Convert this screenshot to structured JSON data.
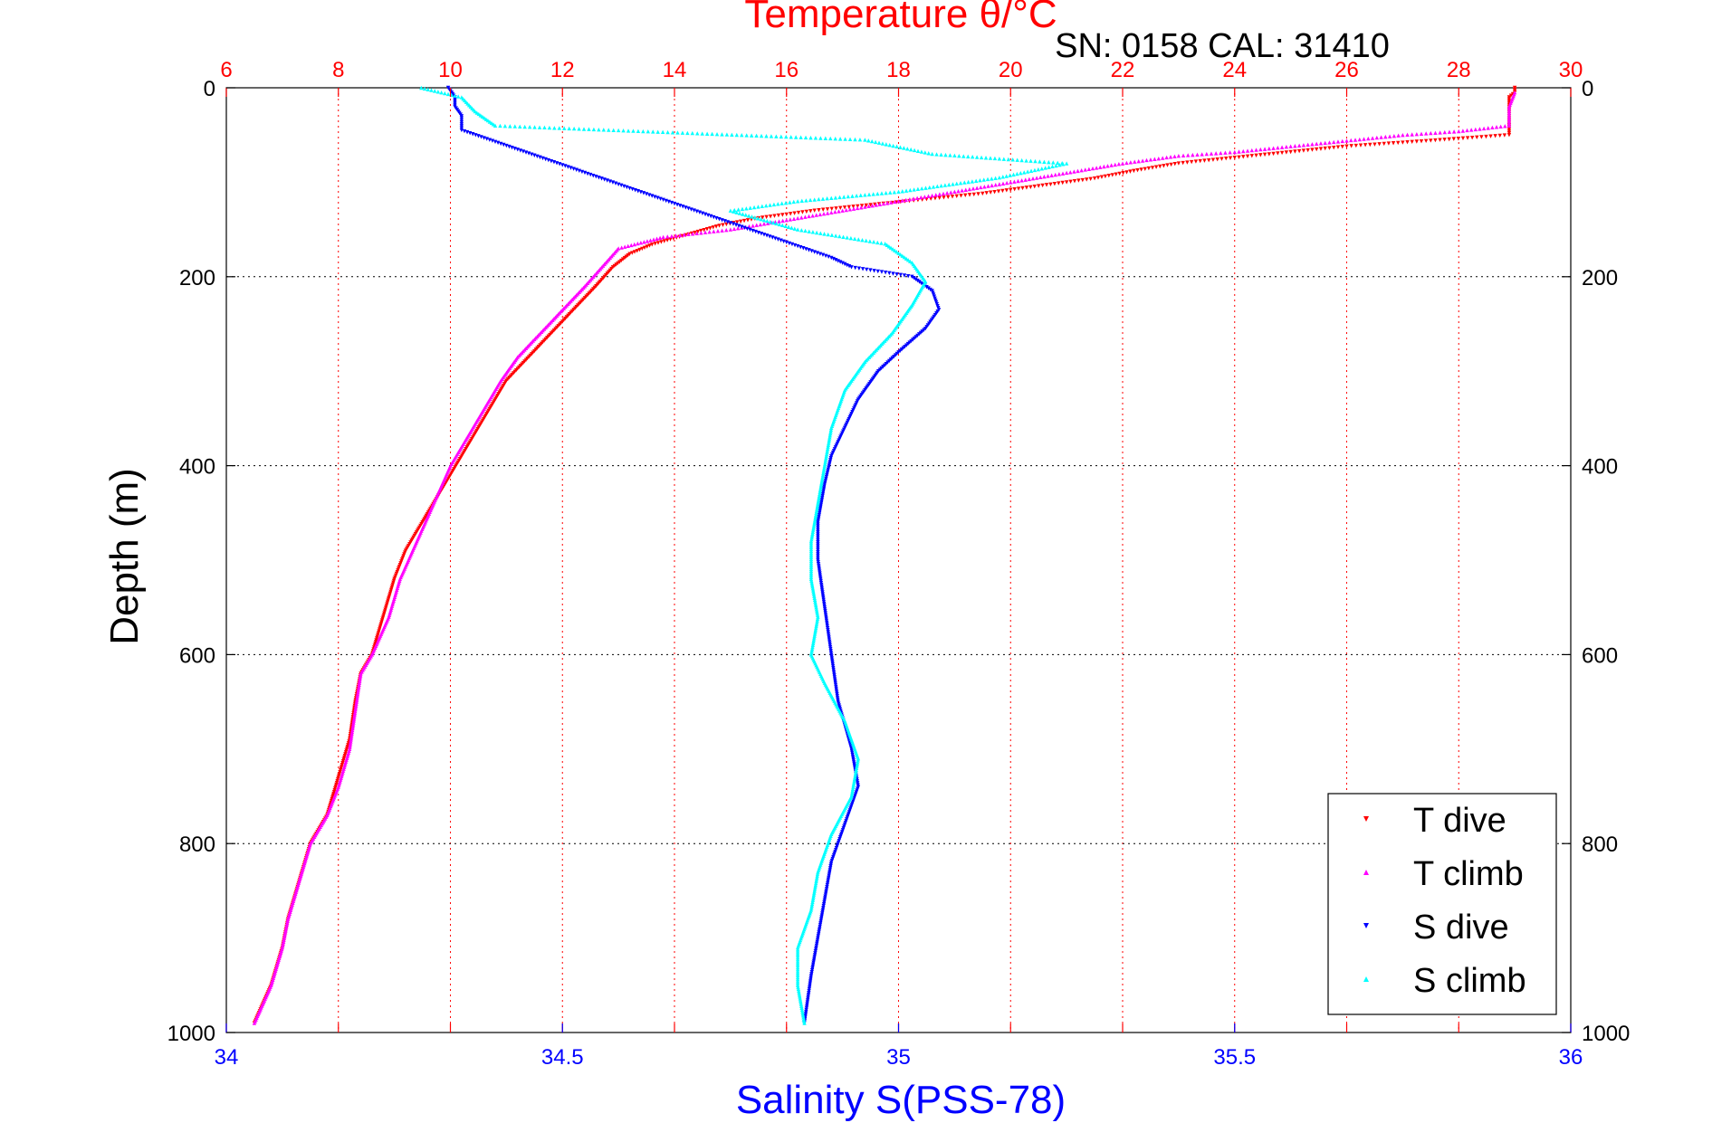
{
  "colors": {
    "t_axis": "#ff0000",
    "s_axis": "#0000ff",
    "t_dive": "#ff0000",
    "t_climb": "#ff00ff",
    "s_dive": "#0000ff",
    "s_climb": "#00ffff",
    "grid_depth": "#000000"
  },
  "chart_data": {
    "type": "scatter",
    "title": "Temperature θ/°C",
    "subtitle": "SN: 0158  CAL: 31410",
    "ylabel": "Depth (m)",
    "xlabel_bottom": "Salinity S(PSS-78)",
    "xlabel_top": "Temperature θ/°C",
    "y_reversed": true,
    "ylim": [
      0,
      1000
    ],
    "yticks": [
      "0",
      "200",
      "400",
      "600",
      "800",
      "1000"
    ],
    "xlim_temperature": [
      6,
      30
    ],
    "xticks_temperature": [
      "6",
      "8",
      "10",
      "12",
      "14",
      "16",
      "18",
      "20",
      "22",
      "24",
      "26",
      "28",
      "30"
    ],
    "xlim_salinity": [
      34,
      36
    ],
    "xticks_salinity": [
      "34",
      "34.5",
      "35",
      "35.5",
      "36"
    ],
    "grid": true,
    "legend_position": "bottom-right",
    "series": [
      {
        "name": "T dive",
        "axis": "temperature",
        "marker": "triangle-down",
        "points": [
          [
            29.0,
            0
          ],
          [
            29.0,
            5
          ],
          [
            28.9,
            10
          ],
          [
            28.9,
            20
          ],
          [
            28.9,
            30
          ],
          [
            28.9,
            40
          ],
          [
            28.9,
            50
          ],
          [
            27.5,
            56
          ],
          [
            26.0,
            62
          ],
          [
            25.0,
            68
          ],
          [
            24.0,
            74
          ],
          [
            23.0,
            80
          ],
          [
            22.2,
            88
          ],
          [
            21.5,
            96
          ],
          [
            20.5,
            104
          ],
          [
            19.5,
            112
          ],
          [
            18.5,
            118
          ],
          [
            17.5,
            124
          ],
          [
            16.5,
            130
          ],
          [
            15.5,
            138
          ],
          [
            14.8,
            146
          ],
          [
            14.2,
            156
          ],
          [
            13.6,
            166
          ],
          [
            13.2,
            176
          ],
          [
            12.9,
            190
          ],
          [
            12.6,
            210
          ],
          [
            12.2,
            235
          ],
          [
            11.8,
            260
          ],
          [
            11.4,
            285
          ],
          [
            11.0,
            310
          ],
          [
            10.7,
            340
          ],
          [
            10.4,
            370
          ],
          [
            10.1,
            400
          ],
          [
            9.8,
            430
          ],
          [
            9.5,
            460
          ],
          [
            9.2,
            490
          ],
          [
            9.0,
            520
          ],
          [
            8.8,
            560
          ],
          [
            8.6,
            600
          ],
          [
            8.4,
            620
          ],
          [
            8.3,
            650
          ],
          [
            8.2,
            690
          ],
          [
            8.0,
            730
          ],
          [
            7.8,
            770
          ],
          [
            7.5,
            800
          ],
          [
            7.3,
            840
          ],
          [
            7.1,
            880
          ],
          [
            7.0,
            910
          ],
          [
            6.8,
            950
          ],
          [
            6.5,
            990
          ]
        ]
      },
      {
        "name": "T climb",
        "axis": "temperature",
        "marker": "triangle-up",
        "points": [
          [
            6.5,
            990
          ],
          [
            6.8,
            950
          ],
          [
            7.0,
            910
          ],
          [
            7.1,
            880
          ],
          [
            7.3,
            840
          ],
          [
            7.5,
            800
          ],
          [
            7.8,
            770
          ],
          [
            8.0,
            740
          ],
          [
            8.2,
            700
          ],
          [
            8.3,
            660
          ],
          [
            8.4,
            620
          ],
          [
            8.6,
            600
          ],
          [
            8.9,
            560
          ],
          [
            9.1,
            520
          ],
          [
            9.4,
            480
          ],
          [
            9.7,
            440
          ],
          [
            10.0,
            400
          ],
          [
            10.3,
            370
          ],
          [
            10.6,
            340
          ],
          [
            10.9,
            310
          ],
          [
            11.2,
            285
          ],
          [
            11.6,
            260
          ],
          [
            12.0,
            235
          ],
          [
            12.4,
            210
          ],
          [
            12.7,
            190
          ],
          [
            13.0,
            170
          ],
          [
            13.8,
            158
          ],
          [
            15.0,
            150
          ],
          [
            16.0,
            140
          ],
          [
            17.0,
            130
          ],
          [
            18.0,
            120
          ],
          [
            19.0,
            110
          ],
          [
            20.0,
            100
          ],
          [
            21.0,
            90
          ],
          [
            22.0,
            80
          ],
          [
            23.0,
            72
          ],
          [
            24.0,
            68
          ],
          [
            25.0,
            62
          ],
          [
            26.0,
            56
          ],
          [
            27.0,
            50
          ],
          [
            28.0,
            46
          ],
          [
            28.9,
            40
          ],
          [
            28.9,
            20
          ],
          [
            29.0,
            5
          ]
        ]
      },
      {
        "name": "S dive",
        "axis": "salinity",
        "marker": "triangle-down",
        "points": [
          [
            34.33,
            0
          ],
          [
            34.34,
            10
          ],
          [
            34.34,
            20
          ],
          [
            34.35,
            30
          ],
          [
            34.35,
            45
          ],
          [
            34.9,
            180
          ],
          [
            34.93,
            190
          ],
          [
            35.02,
            200
          ],
          [
            35.05,
            215
          ],
          [
            35.06,
            235
          ],
          [
            35.04,
            255
          ],
          [
            35.0,
            280
          ],
          [
            34.97,
            300
          ],
          [
            34.94,
            330
          ],
          [
            34.92,
            360
          ],
          [
            34.9,
            390
          ],
          [
            34.89,
            420
          ],
          [
            34.88,
            460
          ],
          [
            34.88,
            500
          ],
          [
            34.89,
            550
          ],
          [
            34.9,
            600
          ],
          [
            34.91,
            650
          ],
          [
            34.93,
            700
          ],
          [
            34.94,
            740
          ],
          [
            34.92,
            780
          ],
          [
            34.9,
            820
          ],
          [
            34.89,
            860
          ],
          [
            34.88,
            900
          ],
          [
            34.87,
            940
          ],
          [
            34.86,
            990
          ]
        ]
      },
      {
        "name": "S climb",
        "axis": "salinity",
        "marker": "triangle-up",
        "points": [
          [
            34.86,
            990
          ],
          [
            34.85,
            950
          ],
          [
            34.85,
            910
          ],
          [
            34.87,
            870
          ],
          [
            34.88,
            830
          ],
          [
            34.9,
            790
          ],
          [
            34.93,
            750
          ],
          [
            34.94,
            710
          ],
          [
            34.92,
            670
          ],
          [
            34.89,
            630
          ],
          [
            34.87,
            600
          ],
          [
            34.88,
            560
          ],
          [
            34.87,
            520
          ],
          [
            34.87,
            480
          ],
          [
            34.88,
            440
          ],
          [
            34.89,
            400
          ],
          [
            34.9,
            360
          ],
          [
            34.92,
            320
          ],
          [
            34.95,
            290
          ],
          [
            34.99,
            260
          ],
          [
            35.02,
            230
          ],
          [
            35.04,
            205
          ],
          [
            35.02,
            185
          ],
          [
            34.98,
            165
          ],
          [
            34.85,
            150
          ],
          [
            34.8,
            140
          ],
          [
            34.75,
            130
          ],
          [
            34.85,
            120
          ],
          [
            35.0,
            110
          ],
          [
            35.15,
            95
          ],
          [
            35.25,
            80
          ],
          [
            35.05,
            70
          ],
          [
            34.95,
            55
          ],
          [
            34.4,
            40
          ],
          [
            34.37,
            25
          ],
          [
            34.35,
            10
          ],
          [
            34.29,
            0
          ]
        ]
      }
    ]
  }
}
